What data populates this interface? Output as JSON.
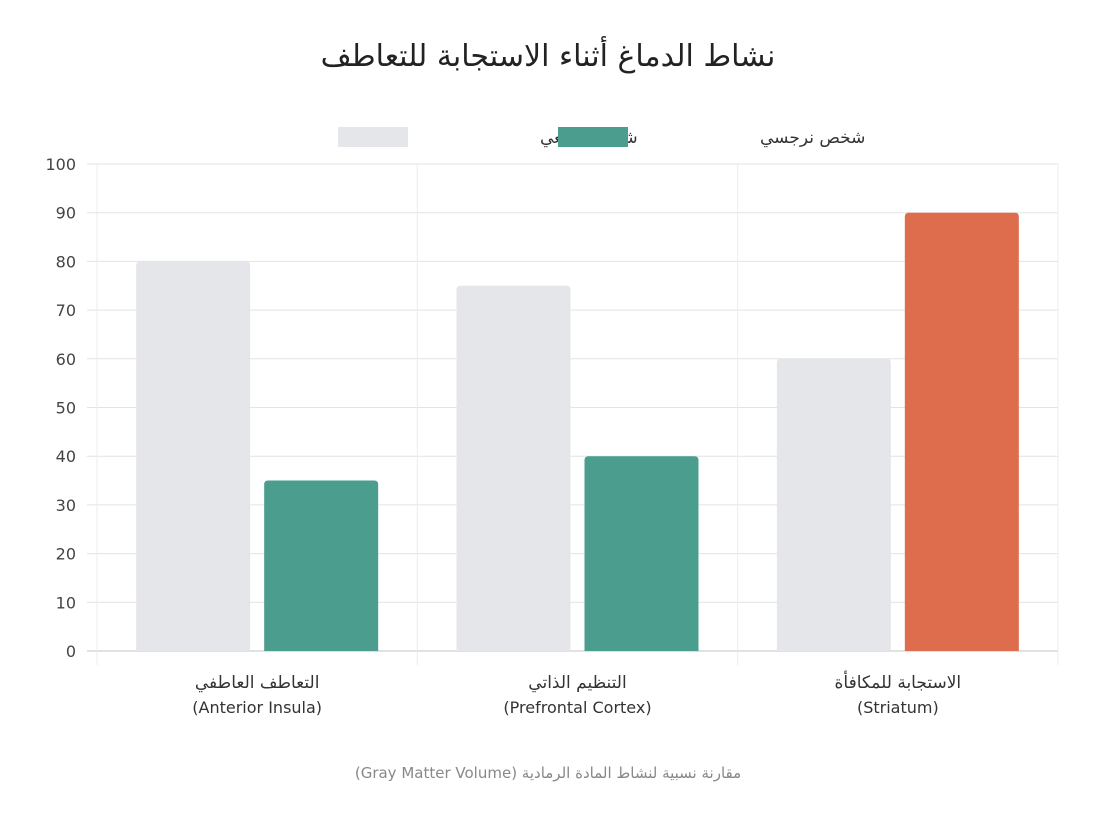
{
  "chart_data": {
    "type": "bar",
    "title": "نشاط الدماغ أثناء الاستجابة للتعاطف",
    "caption": "مقارنة نسبية لنشاط المادة الرمادية (Gray Matter Volume)",
    "categories": [
      {
        "label": "التعاطف العاطفي",
        "sub": "(Anterior Insula)"
      },
      {
        "label": "التنظيم الذاتي",
        "sub": "(Prefrontal Cortex)"
      },
      {
        "label": "الاستجابة للمكافأة",
        "sub": "(Striatum)"
      }
    ],
    "series": [
      {
        "name": "شخص طبيعي",
        "values": [
          80,
          75,
          60
        ],
        "color": "#e5e6ea"
      },
      {
        "name": "شخص نرجسي",
        "values": [
          35,
          40,
          90
        ],
        "color": "#4b9e8e",
        "highlight_color": "#de6d4e",
        "highlight_index": 2
      }
    ],
    "ylim": [
      0,
      100
    ],
    "yticks": [
      0,
      10,
      20,
      30,
      40,
      50,
      60,
      70,
      80,
      90,
      100
    ],
    "grid": true,
    "legend_position": "top-center"
  }
}
